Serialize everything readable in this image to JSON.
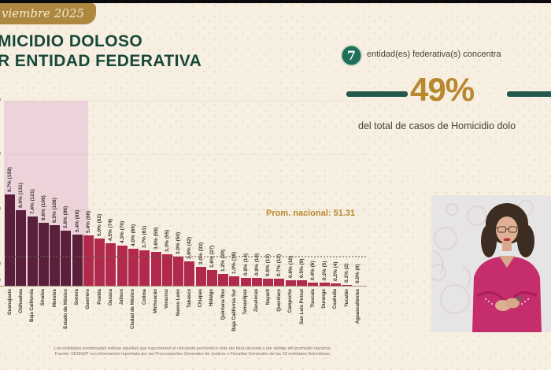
{
  "page": {
    "date_badge": "viembre 2025",
    "title_line1": "MICIDIO DOLOSO",
    "title_line2": "R ENTIDAD FEDERATIVA"
  },
  "highlight": {
    "count": "7",
    "line1": "entidad(es) federativa(s) concentra",
    "percent": "49%",
    "line2": "del total de casos de Homicidio dolo"
  },
  "chart_data": {
    "type": "bar",
    "title": "",
    "xlabel": "",
    "ylabel": "",
    "ylim": [
      0,
      160
    ],
    "grid": "faint horizontal",
    "shaded_first_n": 7,
    "national_average": 51.31,
    "annotation": "Prom. nacional: 51.31",
    "y_axis_tick_fragments": [
      "0",
      "0",
      "0",
      "0",
      "0"
    ],
    "categories": [
      "Guanajuato",
      "Chihuahua",
      "Baja California",
      "Sinaloa",
      "Morelos",
      "Estado de México",
      "Sonora",
      "Guerrero",
      "Puebla",
      "Oaxaca",
      "Jalisco",
      "Ciudad de México",
      "Colima",
      "Michoacán",
      "Veracruz",
      "Nuevo León",
      "Tabasco",
      "Chiapas",
      "Hidalgo",
      "Quintana Roo",
      "Baja California Sur",
      "Tamaulipas",
      "Zacatecas",
      "Nayarit",
      "Querétaro",
      "Campeche",
      "San Luis Potosí",
      "Tlaxcala",
      "Durango",
      "Coahuila",
      "Yucatán",
      "Aguascalientes"
    ],
    "values": [
      159,
      131,
      121,
      109,
      106,
      96,
      89,
      88,
      82,
      74,
      70,
      65,
      61,
      59,
      55,
      50,
      42,
      33,
      27,
      20,
      16,
      14,
      14,
      13,
      12,
      10,
      9,
      6,
      5,
      4,
      2,
      0
    ],
    "percents": [
      "9.7%",
      "8.0%",
      "7.4%",
      "6.6%",
      "6.5%",
      "5.8%",
      "5.4%",
      "5.4%",
      "5.0%",
      "4.5%",
      "4.3%",
      "4.0%",
      "3.7%",
      "3.6%",
      "3.3%",
      "3.0%",
      "2.6%",
      "2.0%",
      "1.6%",
      "1.2%",
      "1.0%",
      "0.9%",
      "0.9%",
      "0.8%",
      "0.7%",
      "0.6%",
      "0.5%",
      "0.4%",
      "0.3%",
      "0.2%",
      "0.1%",
      "0.0%"
    ]
  },
  "footer": {
    "line1": "Las entidades sombreadas indican aquellas que representan el cincuenta porciento o más del total nacional o por debajo del promedio nacional.",
    "line2": "Fuente: SESNSP con información reportada por las Procuradurías Generales de Justicia o Fiscalías Generales de las 32 entidades federativas."
  },
  "colors": {
    "background": "#f7efe1",
    "title_green": "#17483a",
    "teal": "#1d6f5a",
    "gold": "#b8882e",
    "badge_gold": "#ae8840",
    "bar_dark": "#5a1f3b",
    "bar_light": "#b12a4d",
    "shade_pink": "#ecd3da"
  }
}
